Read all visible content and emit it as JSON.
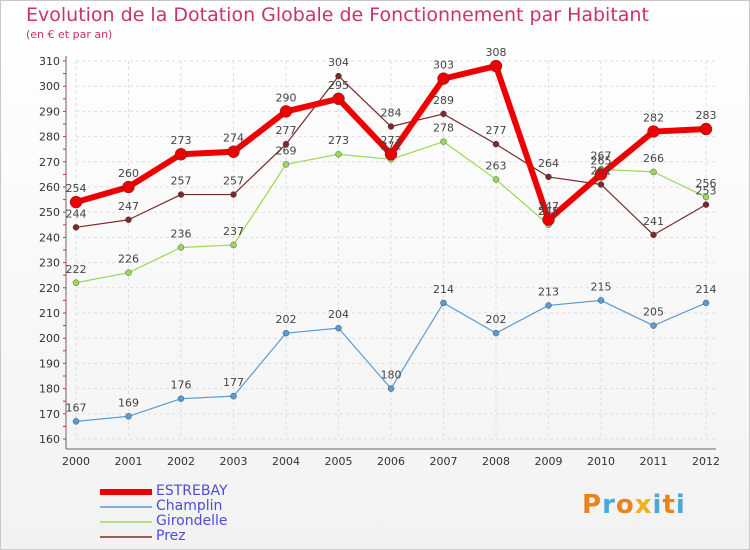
{
  "header": {
    "title": "Evolution de la Dotation Globale de Fonctionnement par Habitant",
    "subtitle": "(en € et par an)"
  },
  "logo": {
    "text": "Proxiti",
    "colors": [
      "#e8841a",
      "#4aa8dc",
      "#e8841a",
      "#f0b020",
      "#4aa8dc",
      "#e8841a",
      "#4aa8dc"
    ]
  },
  "chart_data": {
    "type": "line",
    "title": "Evolution de la Dotation Globale de Fonctionnement par Habitant",
    "subtitle": "(en € et par an)",
    "categories": [
      "2000",
      "2001",
      "2002",
      "2003",
      "2004",
      "2005",
      "2006",
      "2007",
      "2008",
      "2009",
      "2010",
      "2011",
      "2012"
    ],
    "ylim": [
      160,
      310
    ],
    "yticks": [
      160,
      170,
      180,
      190,
      200,
      210,
      220,
      230,
      240,
      250,
      260,
      270,
      280,
      290,
      300,
      310
    ],
    "grid": true,
    "legend": "bottom-left",
    "series": [
      {
        "name": "Prez",
        "color": "#7a2a2a",
        "width": 1.2,
        "values": [
          244,
          247,
          257,
          257,
          277,
          304,
          284,
          289,
          277,
          264,
          261,
          241,
          253
        ]
      },
      {
        "name": "Girondelle",
        "color": "#99d955",
        "width": 1.2,
        "values": [
          222,
          226,
          236,
          237,
          269,
          273,
          271,
          278,
          263,
          245,
          267,
          266,
          256
        ]
      },
      {
        "name": "Champlin",
        "color": "#5b9bd5",
        "width": 1.2,
        "values": [
          167,
          169,
          176,
          177,
          202,
          204,
          180,
          214,
          202,
          213,
          215,
          205,
          214
        ]
      },
      {
        "name": "ESTREBAY",
        "color": "#ee0000",
        "width": 6,
        "values": [
          254,
          260,
          273,
          274,
          290,
          295,
          273,
          303,
          308,
          247,
          265,
          282,
          283
        ]
      }
    ],
    "legend_order": [
      "ESTREBAY",
      "Champlin",
      "Girondelle",
      "Prez"
    ],
    "labels": [
      {
        "series": "Prez",
        "values": [
          "244",
          "247",
          "257",
          "257",
          "277",
          "304",
          "284",
          "289",
          "277",
          "264",
          "261",
          "241",
          "253"
        ]
      },
      {
        "series": "Girondelle",
        "values": [
          "222",
          "226",
          "236",
          "237",
          "269",
          "273",
          "271",
          "278",
          "263",
          "245",
          "267",
          "266",
          "256"
        ]
      },
      {
        "series": "Champlin",
        "values": [
          "167",
          "169",
          "176",
          "177",
          "202",
          "204",
          "180",
          "214",
          "202",
          "213",
          "215",
          "205",
          "214"
        ]
      },
      {
        "series": "ESTREBAY",
        "values": [
          "254",
          "260",
          "273",
          "274",
          "290",
          "295",
          "273",
          "303",
          "308",
          "247",
          "265",
          "282",
          "283"
        ]
      }
    ]
  }
}
